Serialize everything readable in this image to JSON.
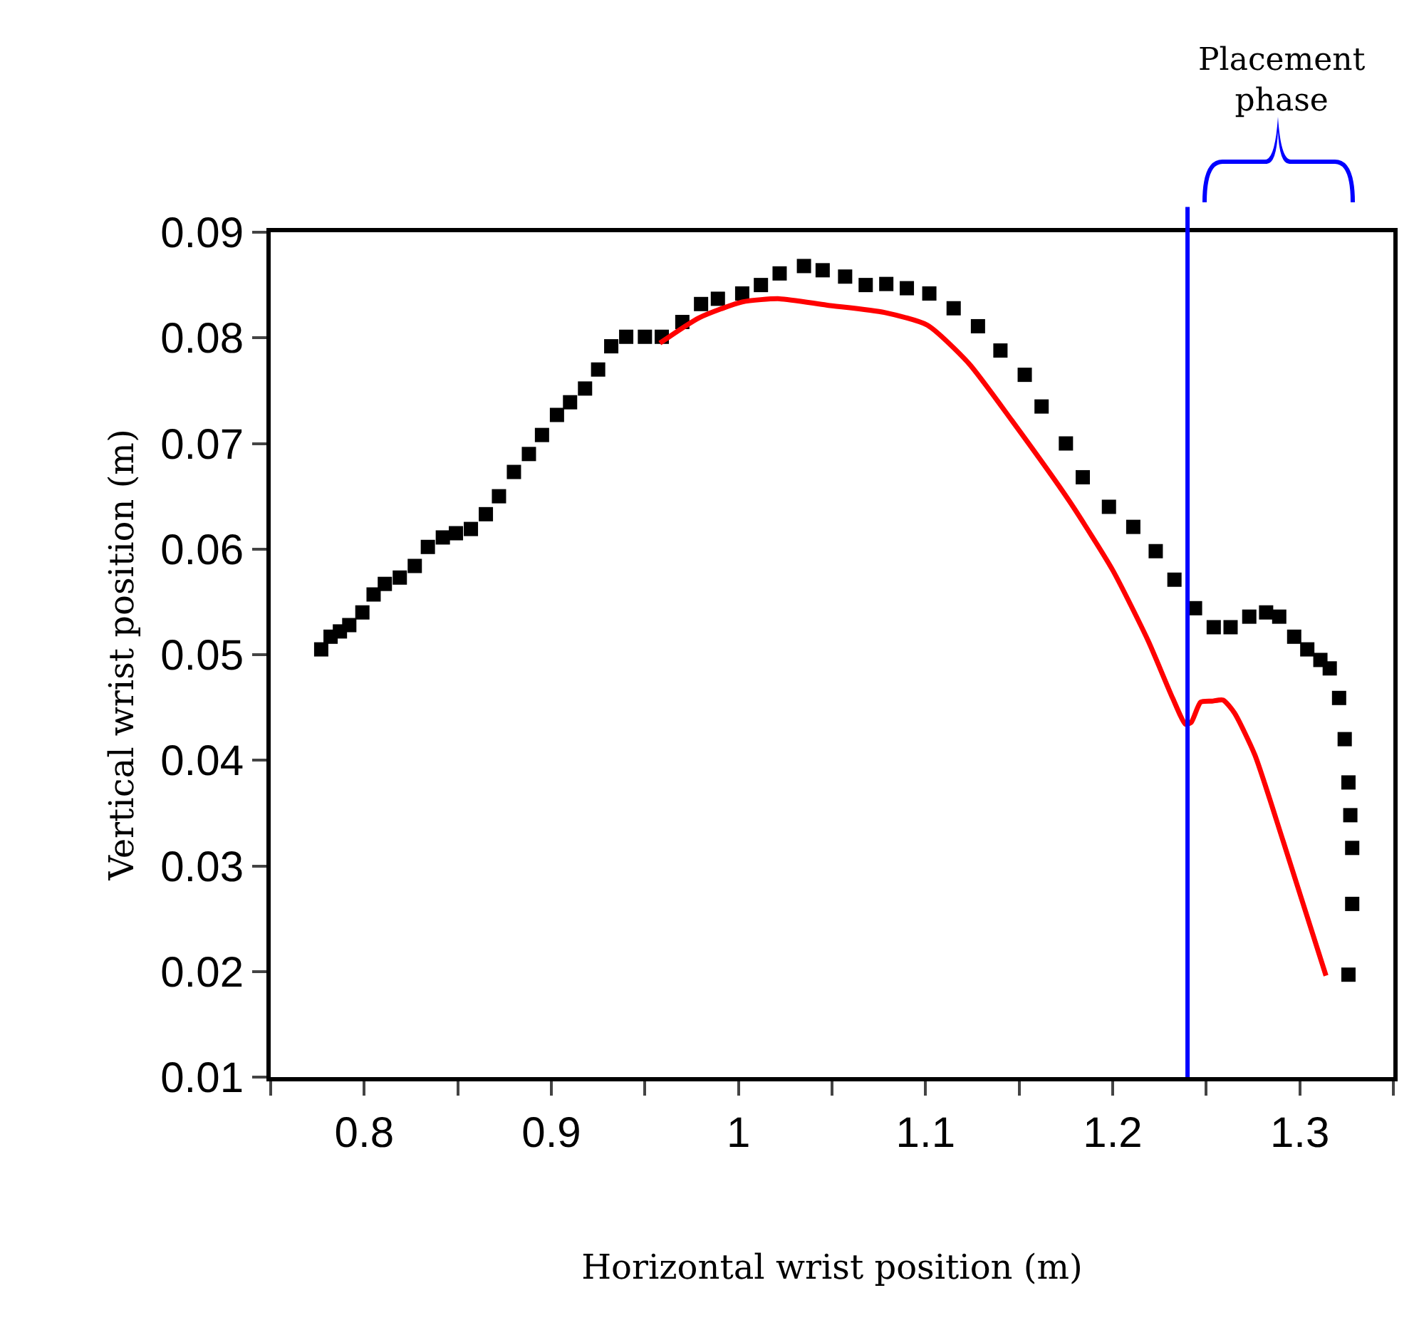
{
  "chart_data": {
    "type": "scatter",
    "xlabel": "Horizontal wrist position (m)",
    "ylabel": "Vertical wrist position (m)",
    "annotations": [
      "Placement phase"
    ],
    "xlim": [
      0.75,
      1.35
    ],
    "xticks": [
      {
        "value": 0.75,
        "label": null
      },
      0.8,
      {
        "value": 0.85,
        "label": null
      },
      0.9,
      {
        "value": 0.95,
        "label": null
      },
      1,
      {
        "value": 1.05,
        "label": null
      },
      1.1,
      {
        "value": 1.15,
        "label": null
      },
      1.2,
      {
        "value": 1.25,
        "label": null
      },
      1.3,
      {
        "value": 1.35,
        "label": null
      }
    ],
    "ylim": [
      0.01,
      0.09
    ],
    "yticks": [
      0.01,
      0.02,
      0.03,
      0.04,
      0.05,
      0.06,
      0.07,
      0.08,
      0.09
    ],
    "grid": false,
    "marker": "square",
    "ref_lines": [
      {
        "axis": "x",
        "value": 1.24,
        "color": "#0000ff"
      }
    ],
    "series": [
      {
        "color": "#000000",
        "x": [
          0.777,
          0.782,
          0.787,
          0.792,
          0.799,
          0.805,
          0.811,
          0.819,
          0.827,
          0.834,
          0.842,
          0.849,
          0.857,
          0.865,
          0.872,
          0.88,
          0.888,
          0.895,
          0.903,
          0.91,
          0.918,
          0.925,
          0.932,
          0.94,
          0.95,
          0.959,
          0.97,
          0.98,
          0.989,
          1.002,
          1.012,
          1.022,
          1.035,
          1.045,
          1.057,
          1.068,
          1.079,
          1.09,
          1.102,
          1.115,
          1.128,
          1.14,
          1.153,
          1.162,
          1.175,
          1.184,
          1.198,
          1.211,
          1.223,
          1.233,
          1.244,
          1.254,
          1.263,
          1.273,
          1.282,
          1.289,
          1.297,
          1.304,
          1.311,
          1.316,
          1.321,
          1.324,
          1.326,
          1.327,
          1.328,
          1.328,
          1.326
        ],
        "values": [
          0.0505,
          0.0517,
          0.0522,
          0.0528,
          0.054,
          0.0557,
          0.0567,
          0.0573,
          0.0584,
          0.0602,
          0.0611,
          0.0615,
          0.0619,
          0.0633,
          0.065,
          0.0673,
          0.069,
          0.0708,
          0.0727,
          0.0739,
          0.0752,
          0.077,
          0.0792,
          0.0801,
          0.0801,
          0.0801,
          0.0815,
          0.0832,
          0.0837,
          0.0842,
          0.085,
          0.0861,
          0.0868,
          0.0864,
          0.0858,
          0.085,
          0.0851,
          0.0847,
          0.0842,
          0.0828,
          0.0811,
          0.0788,
          0.0765,
          0.0735,
          0.07,
          0.0668,
          0.064,
          0.0621,
          0.0598,
          0.0571,
          0.0544,
          0.0526,
          0.0526,
          0.0536,
          0.054,
          0.0536,
          0.0517,
          0.0505,
          0.0495,
          0.0487,
          0.0459,
          0.042,
          0.0379,
          0.0348,
          0.0317,
          0.0264,
          0.0197
        ]
      },
      {
        "type": "line",
        "color": "#ff0000",
        "marker": "none",
        "line_style": "solid",
        "x": [
          0.958,
          0.979,
          1.002,
          1.022,
          1.047,
          1.078,
          1.101,
          1.123,
          1.146,
          1.177,
          1.2,
          1.219,
          1.232,
          1.239,
          1.242,
          1.247,
          1.253,
          1.259,
          1.265,
          1.276,
          1.291,
          1.314
        ],
        "values": [
          0.0795,
          0.0819,
          0.0834,
          0.0837,
          0.0831,
          0.0824,
          0.0812,
          0.0776,
          0.0722,
          0.0645,
          0.058,
          0.0513,
          0.0459,
          0.0434,
          0.0436,
          0.0455,
          0.0456,
          0.0457,
          0.0445,
          0.0405,
          0.0324,
          0.0196
        ]
      }
    ]
  }
}
